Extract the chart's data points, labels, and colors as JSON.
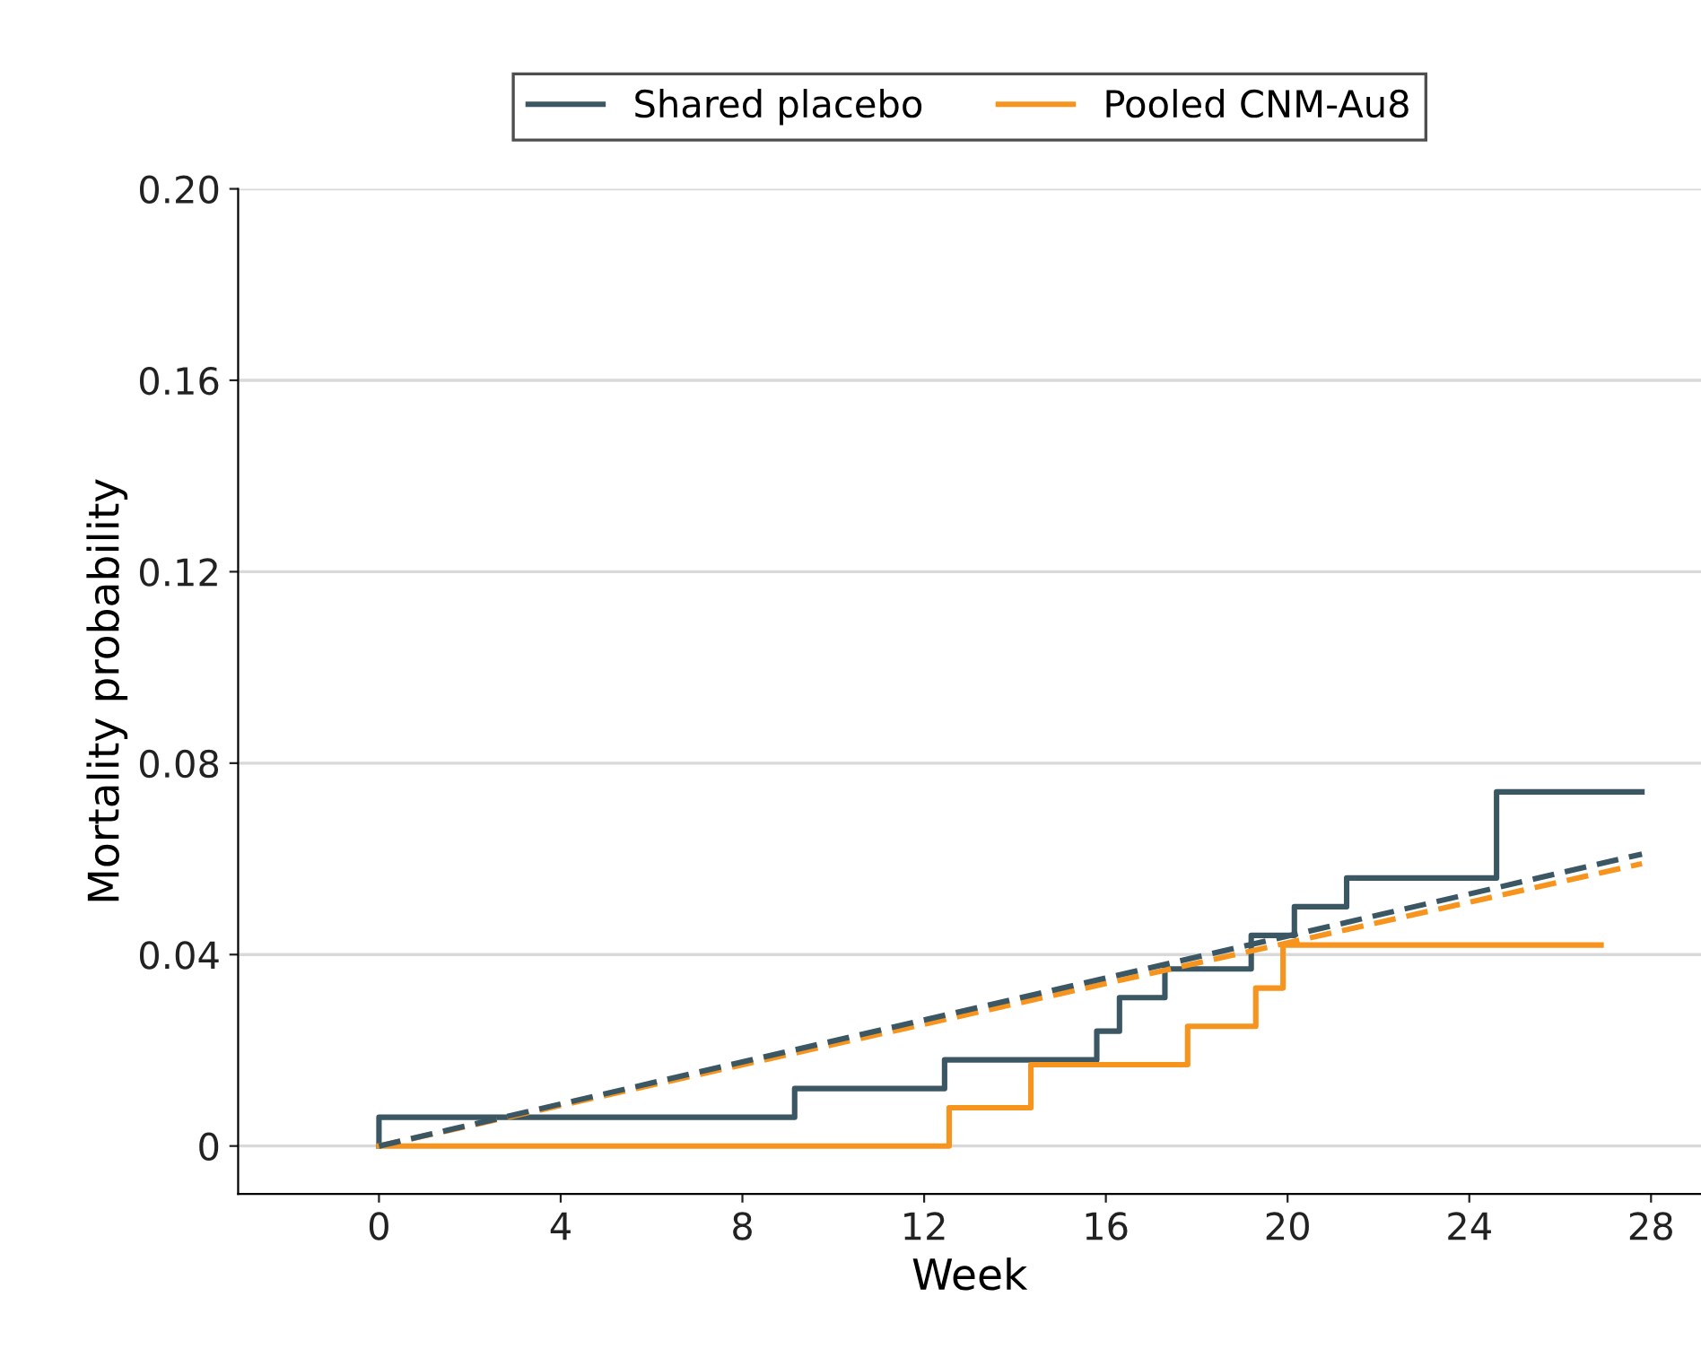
{
  "chart_data": {
    "type": "step",
    "xlabel": "Week",
    "ylabel": "Mortality probability",
    "xlim": [
      -3.1,
      29.1
    ],
    "ylim": [
      -0.01,
      0.2
    ],
    "xticks": [
      0,
      4,
      8,
      12,
      16,
      20,
      24,
      28
    ],
    "yticks": [
      {
        "value": 0,
        "label": "0"
      },
      {
        "value": 0.04,
        "label": "0.04"
      },
      {
        "value": 0.08,
        "label": "0.08"
      },
      {
        "value": 0.12,
        "label": "0.12"
      },
      {
        "value": 0.16,
        "label": "0.16"
      },
      {
        "value": 0.2,
        "label": "0.20"
      }
    ],
    "grid": "y",
    "legend": "top",
    "marker": "none",
    "series": [
      {
        "name": "Shared placebo",
        "color": "#3b5763",
        "x": [
          0,
          0,
          9.15,
          12.45,
          15.8,
          16.3,
          17.3,
          19.2,
          20.15,
          21.3,
          24.6,
          27.8
        ],
        "values": [
          0,
          0.006,
          0.012,
          0.018,
          0.024,
          0.031,
          0.037,
          0.044,
          0.05,
          0.056,
          0.074,
          0.074
        ]
      },
      {
        "name": "Pooled CNM-Au8",
        "color": "#f7941d",
        "x": [
          0,
          12.55,
          14.35,
          17.8,
          19.3,
          19.9,
          26.9
        ],
        "values": [
          0,
          0.008,
          0.017,
          0.025,
          0.033,
          0.042,
          0.042
        ]
      },
      {
        "type": "line",
        "line_style": "dashed",
        "color": "#f7941d",
        "x": [
          0,
          27.8
        ],
        "values": [
          0,
          0.059
        ]
      },
      {
        "type": "line",
        "line_style": "dashed",
        "color": "#3b5763",
        "x": [
          0,
          27.8
        ],
        "values": [
          0,
          0.061
        ]
      }
    ]
  }
}
